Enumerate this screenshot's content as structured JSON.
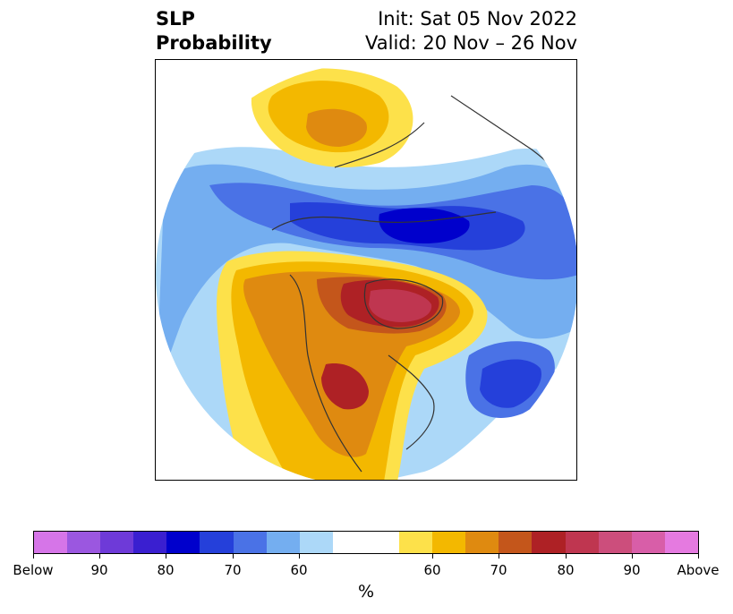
{
  "title": {
    "left_line1": "SLP",
    "left_line2": "Probability",
    "right_line1": "Init: Sat 05 Nov 2022",
    "right_line2": "Valid: 20 Nov – 26 Nov"
  },
  "colorbar": {
    "unit": "%",
    "tick_labels": [
      "Below",
      "90",
      "80",
      "70",
      "60",
      "60",
      "70",
      "80",
      "90",
      "Above"
    ],
    "below_colors": [
      "#d675e8",
      "#9b57e0",
      "#6e3ad8",
      "#3a1fd0",
      "#0000cc",
      "#2540da",
      "#4a72e6",
      "#74aef0",
      "#acd8f8"
    ],
    "neutral_color": "#ffffff",
    "above_colors": [
      "#fde14a",
      "#f3b800",
      "#df8a10",
      "#c4561b",
      "#ae2125",
      "#bf3650",
      "#cc4e7c",
      "#d85ea8",
      "#e57ae0"
    ]
  }
}
